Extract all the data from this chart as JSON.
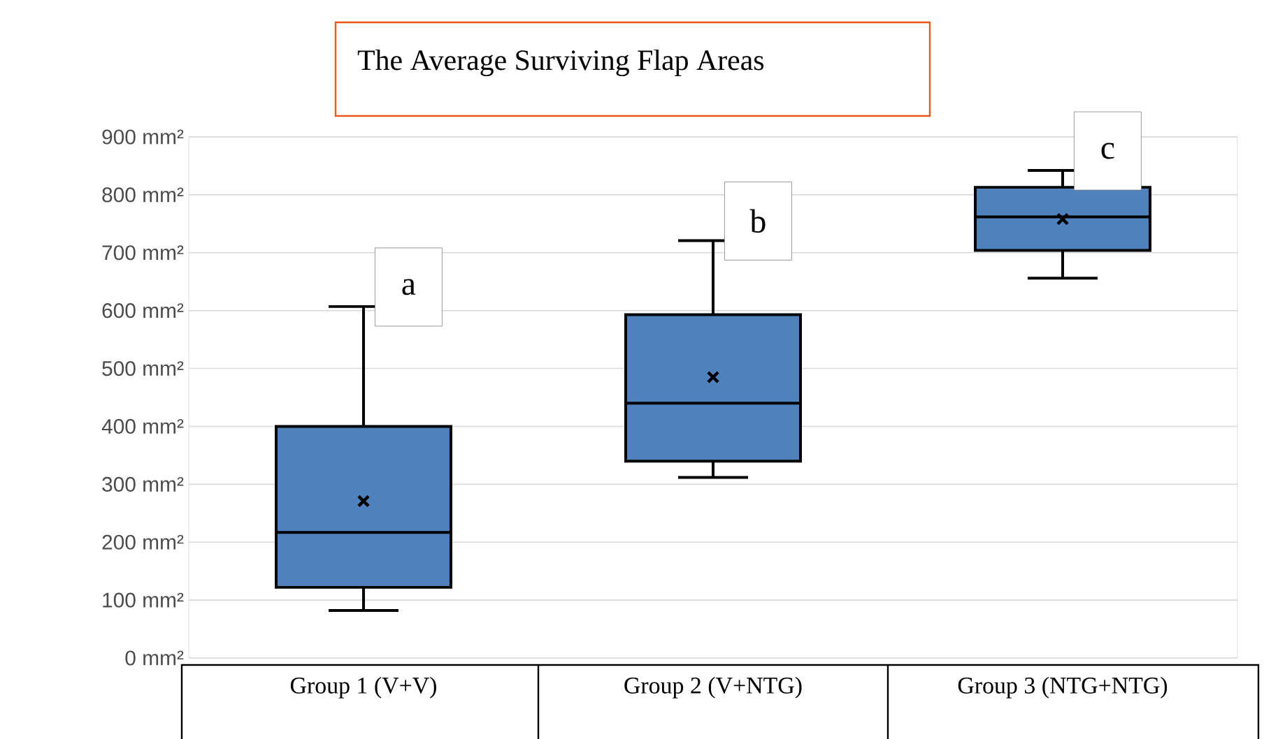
{
  "chart_data": {
    "type": "box",
    "title": "The Average Surviving Flap Areas",
    "categories": [
      "Group 1 (V+V)",
      "Group 2 (V+NTG)",
      "Group 3 (NTG+NTG)"
    ],
    "series": [
      {
        "color": "#4f81bd",
        "boxes": [
          {
            "low": 82,
            "q1": 122,
            "median": 217,
            "q3": 400,
            "high": 607,
            "mean": 271
          },
          {
            "low": 312,
            "q1": 340,
            "median": 440,
            "q3": 593,
            "high": 721,
            "mean": 485
          },
          {
            "low": 656,
            "q1": 704,
            "median": 762,
            "q3": 813,
            "high": 842,
            "mean": 758
          }
        ]
      }
    ],
    "ylim": [
      0,
      900
    ],
    "yticks": [
      {
        "value": 0,
        "label": "0 mm²"
      },
      {
        "value": 100,
        "label": "100 mm²"
      },
      {
        "value": 200,
        "label": "200 mm²"
      },
      {
        "value": 300,
        "label": "300 mm²"
      },
      {
        "value": 400,
        "label": "400 mm²"
      },
      {
        "value": 500,
        "label": "500 mm²"
      },
      {
        "value": 600,
        "label": "600 mm²"
      },
      {
        "value": 700,
        "label": "700 mm²"
      },
      {
        "value": 800,
        "label": "800 mm²"
      },
      {
        "value": 900,
        "label": "900 mm²"
      }
    ],
    "grid": "y",
    "marker": "cross",
    "annotations": [
      {
        "text": "a",
        "x": "Group 1 (V+V)",
        "y": 607
      },
      {
        "text": "b",
        "x": "Group 2 (V+NTG)",
        "y": 721
      },
      {
        "text": "c",
        "x": "Group 3 (NTG+NTG)",
        "y": 842
      }
    ]
  }
}
